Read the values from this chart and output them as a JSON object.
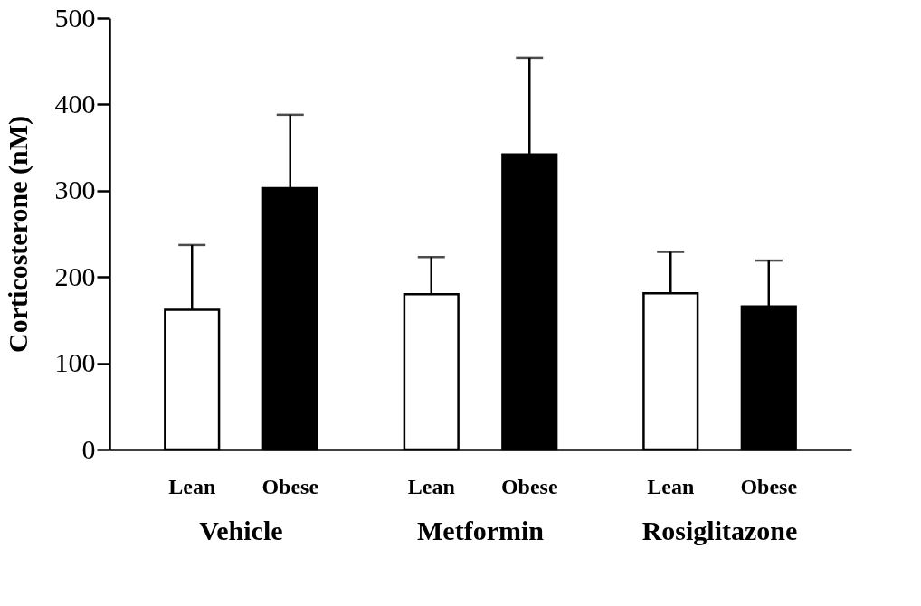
{
  "chart_data": {
    "type": "bar",
    "ylabel": "Corticosterone (nM)",
    "categories": [
      "Vehicle",
      "Metformin",
      "Rosiglitazone"
    ],
    "series": [
      {
        "name": "Lean",
        "color": "#ffffff",
        "values": [
          162,
          180,
          181
        ],
        "errors": [
          [
            162,
            237
          ],
          [
            180,
            223
          ],
          [
            181,
            229
          ]
        ]
      },
      {
        "name": "Obese",
        "color": "#000000",
        "values": [
          303,
          342,
          166
        ],
        "errors": [
          [
            303,
            388
          ],
          [
            342,
            454
          ],
          [
            166,
            219
          ]
        ]
      }
    ],
    "ylim": [
      0,
      500
    ],
    "yticks": [
      0,
      100,
      200,
      300,
      400,
      500
    ],
    "grid": false,
    "legend": false
  }
}
